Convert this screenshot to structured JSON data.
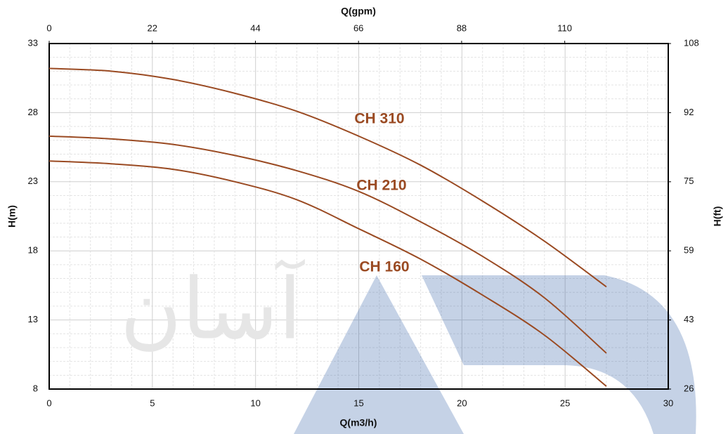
{
  "chart_data": {
    "type": "line",
    "xlabel": "Q(m3/h)",
    "x2label": "Q(gpm)",
    "ylabel": "H(m)",
    "y2label": "H(ft)",
    "watermark": "آسان",
    "x": [
      0,
      3,
      6,
      9,
      12,
      15,
      18,
      21,
      24,
      27
    ],
    "series": [
      {
        "name": "CH 310",
        "color": "#9a4a22",
        "values": [
          31.2,
          31.0,
          30.4,
          29.4,
          28.1,
          26.3,
          24.2,
          21.6,
          18.7,
          15.4
        ]
      },
      {
        "name": "CH 210",
        "color": "#9a4a22",
        "values": [
          26.3,
          26.1,
          25.7,
          24.9,
          23.8,
          22.3,
          20.1,
          17.6,
          14.6,
          10.6
        ]
      },
      {
        "name": "CH 160",
        "color": "#9a4a22",
        "values": [
          24.5,
          24.3,
          23.9,
          23.0,
          21.7,
          19.6,
          17.4,
          14.8,
          11.9,
          8.2
        ]
      }
    ],
    "xlim": [
      0,
      30
    ],
    "xticks": [
      0,
      5,
      10,
      15,
      20,
      25,
      30
    ],
    "x2lim": [
      0,
      132.09
    ],
    "x2ticks": [
      0,
      22,
      44,
      66,
      88,
      110
    ],
    "ylim": [
      8,
      33
    ],
    "yticks": [
      8,
      13,
      18,
      23,
      28,
      33
    ],
    "y2lim": [
      26.25,
      108.27
    ],
    "y2ticks": [
      {
        "value": 26.25,
        "label": "26"
      },
      {
        "value": 42.65,
        "label": "43"
      },
      {
        "value": 59.06,
        "label": "59"
      },
      {
        "value": 75.46,
        "label": "75"
      },
      {
        "value": 91.86,
        "label": "92"
      },
      {
        "value": 108.27,
        "label": "108"
      }
    ],
    "grid": true,
    "minor_grid": true
  }
}
